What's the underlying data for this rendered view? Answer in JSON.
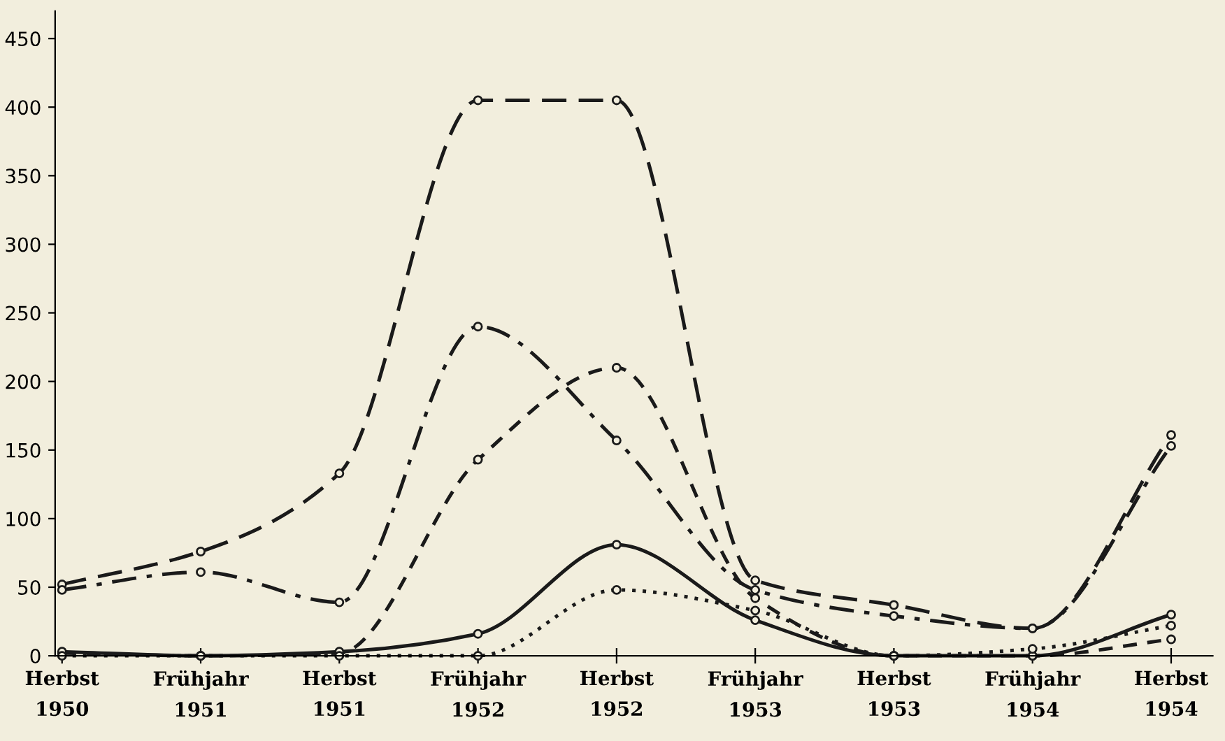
{
  "chart_data": {
    "type": "line",
    "categories": [
      "Herbst\n1950",
      "Frühjahr\n1951",
      "Herbst\n1951",
      "Frühjahr\n1952",
      "Herbst\n1952",
      "Frühjahr\n1953",
      "Herbst\n1953",
      "Frühjahr\n1954",
      "Herbst\n1954"
    ],
    "series": [
      {
        "color": "#1a1a1a",
        "line_style": "longdashed",
        "values": [
          52,
          76,
          133,
          405,
          405,
          55,
          37,
          20,
          161
        ]
      },
      {
        "color": "#1a1a1a",
        "line_style": "dashdot",
        "values": [
          48,
          61,
          39,
          240,
          157,
          48,
          29,
          20,
          153
        ]
      },
      {
        "color": "#1a1a1a",
        "line_style": "dashed",
        "values": [
          2,
          0,
          2,
          143,
          210,
          42,
          0,
          0,
          12
        ]
      },
      {
        "color": "#1a1a1a",
        "line_style": "solid",
        "values": [
          3,
          0,
          3,
          16,
          81,
          26,
          0,
          0,
          30
        ]
      },
      {
        "color": "#1a1a1a",
        "line_style": "dotted",
        "values": [
          0,
          0,
          0,
          0,
          48,
          33,
          0,
          5,
          22
        ]
      }
    ],
    "ylim": [
      0,
      470
    ],
    "yticks": [
      0,
      50,
      100,
      150,
      200,
      250,
      300,
      350,
      400,
      450
    ],
    "marker": "circle",
    "grid": false,
    "legend": false
  }
}
